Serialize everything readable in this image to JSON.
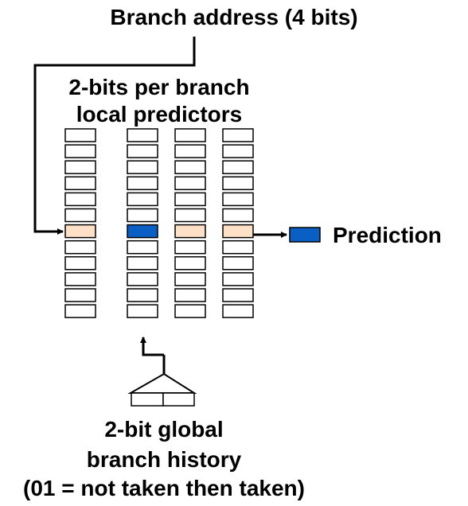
{
  "labels": {
    "branch_address": "Branch address (4 bits)",
    "predictors_line1": "2-bits per branch",
    "predictors_line2": "local predictors",
    "prediction": "Prediction",
    "history_line1": "2-bit global",
    "history_line2": "branch history",
    "history_line3": "(01 = not taken then taken)"
  },
  "table": {
    "columns": 4,
    "rows_per_column": 12,
    "selected_row_index": 6,
    "selected_column_index": 1
  },
  "colors": {
    "cell_fill": "#ffffff",
    "cell_stroke": "#000000",
    "selected_row_fill": "#fde0c5",
    "selected_cell_fill": "#0a5fc4",
    "prediction_fill": "#0a5fc4",
    "line": "#000000"
  }
}
